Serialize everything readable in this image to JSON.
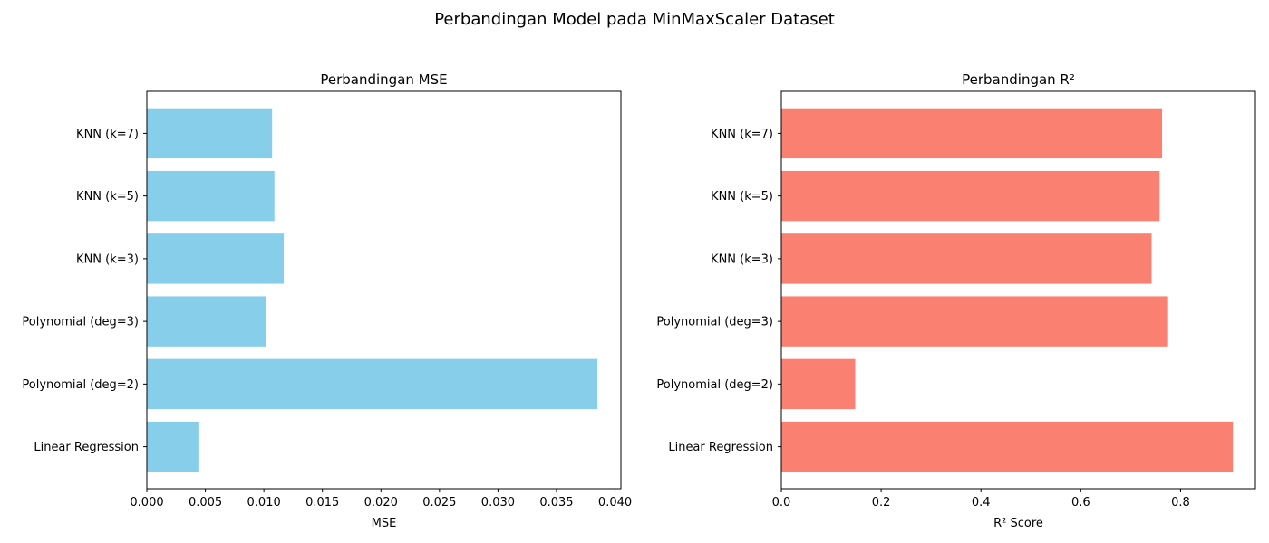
{
  "figure": {
    "suptitle": "Perbandingan Model pada MinMaxScaler Dataset"
  },
  "chart_data": [
    {
      "type": "bar",
      "orientation": "horizontal",
      "title": "Perbandingan MSE",
      "xlabel": "MSE",
      "ylabel": "",
      "categories": [
        "Linear Regression",
        "Polynomial (deg=2)",
        "Polynomial (deg=3)",
        "KNN (k=3)",
        "KNN (k=5)",
        "KNN (k=7)"
      ],
      "values": [
        0.0044,
        0.0385,
        0.0102,
        0.0117,
        0.0109,
        0.0107
      ],
      "xlim": [
        0,
        0.0405
      ],
      "xticks": [
        "0.000",
        "0.005",
        "0.010",
        "0.015",
        "0.020",
        "0.025",
        "0.030",
        "0.035",
        "0.040"
      ],
      "xtick_values": [
        0,
        0.005,
        0.01,
        0.015,
        0.02,
        0.025,
        0.03,
        0.035,
        0.04
      ],
      "color": "#87ceeb",
      "grid": false
    },
    {
      "type": "bar",
      "orientation": "horizontal",
      "title": "Perbandingan R²",
      "xlabel": "R² Score",
      "ylabel": "",
      "categories": [
        "Linear Regression",
        "Polynomial (deg=2)",
        "Polynomial (deg=3)",
        "KNN (k=3)",
        "KNN (k=5)",
        "KNN (k=7)"
      ],
      "values": [
        0.905,
        0.148,
        0.775,
        0.742,
        0.758,
        0.763
      ],
      "xlim": [
        0,
        0.95
      ],
      "xticks": [
        "0.0",
        "0.2",
        "0.4",
        "0.6",
        "0.8"
      ],
      "xtick_values": [
        0,
        0.2,
        0.4,
        0.6,
        0.8
      ],
      "color": "#fa8072",
      "grid": false
    }
  ]
}
